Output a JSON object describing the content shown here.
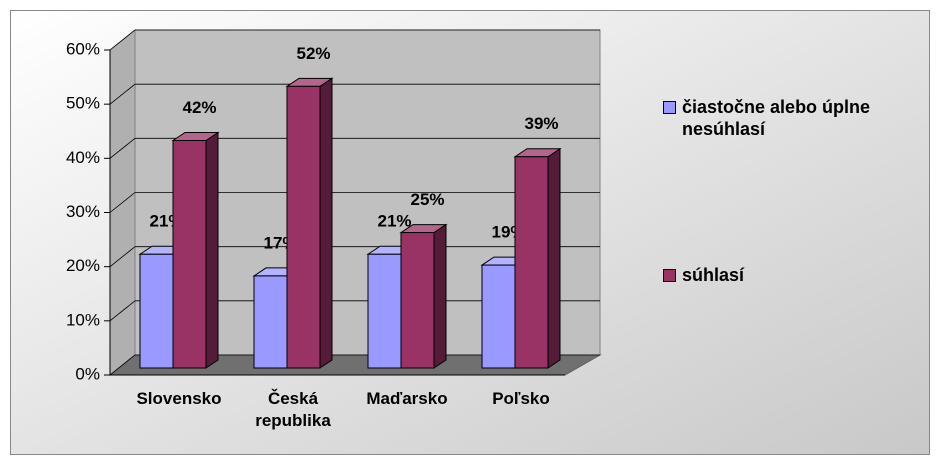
{
  "chart_data": {
    "type": "bar3d",
    "categories": [
      "Slovensko",
      "Česká republika",
      "Maďarsko",
      "Poľsko"
    ],
    "series": [
      {
        "name": "čiastočne alebo úplne nesúhlasí",
        "color": "#9999ff",
        "values": [
          21,
          17,
          21,
          19
        ],
        "value_labels": [
          "21%",
          "17%",
          "21%",
          "19%"
        ]
      },
      {
        "name": "súhlasí",
        "color": "#993366",
        "values": [
          42,
          52,
          25,
          39
        ],
        "value_labels": [
          "42%",
          "52%",
          "25%",
          "39%"
        ]
      }
    ],
    "ylim": [
      0,
      60
    ],
    "yticks": [
      {
        "value": 0,
        "label": "0%"
      },
      {
        "value": 10,
        "label": "10%"
      },
      {
        "value": 20,
        "label": "20%"
      },
      {
        "value": 30,
        "label": "30%"
      },
      {
        "value": 40,
        "label": "40%"
      },
      {
        "value": 50,
        "label": "50%"
      },
      {
        "value": 60,
        "label": "60%"
      }
    ],
    "grid": true,
    "legend": "right"
  }
}
